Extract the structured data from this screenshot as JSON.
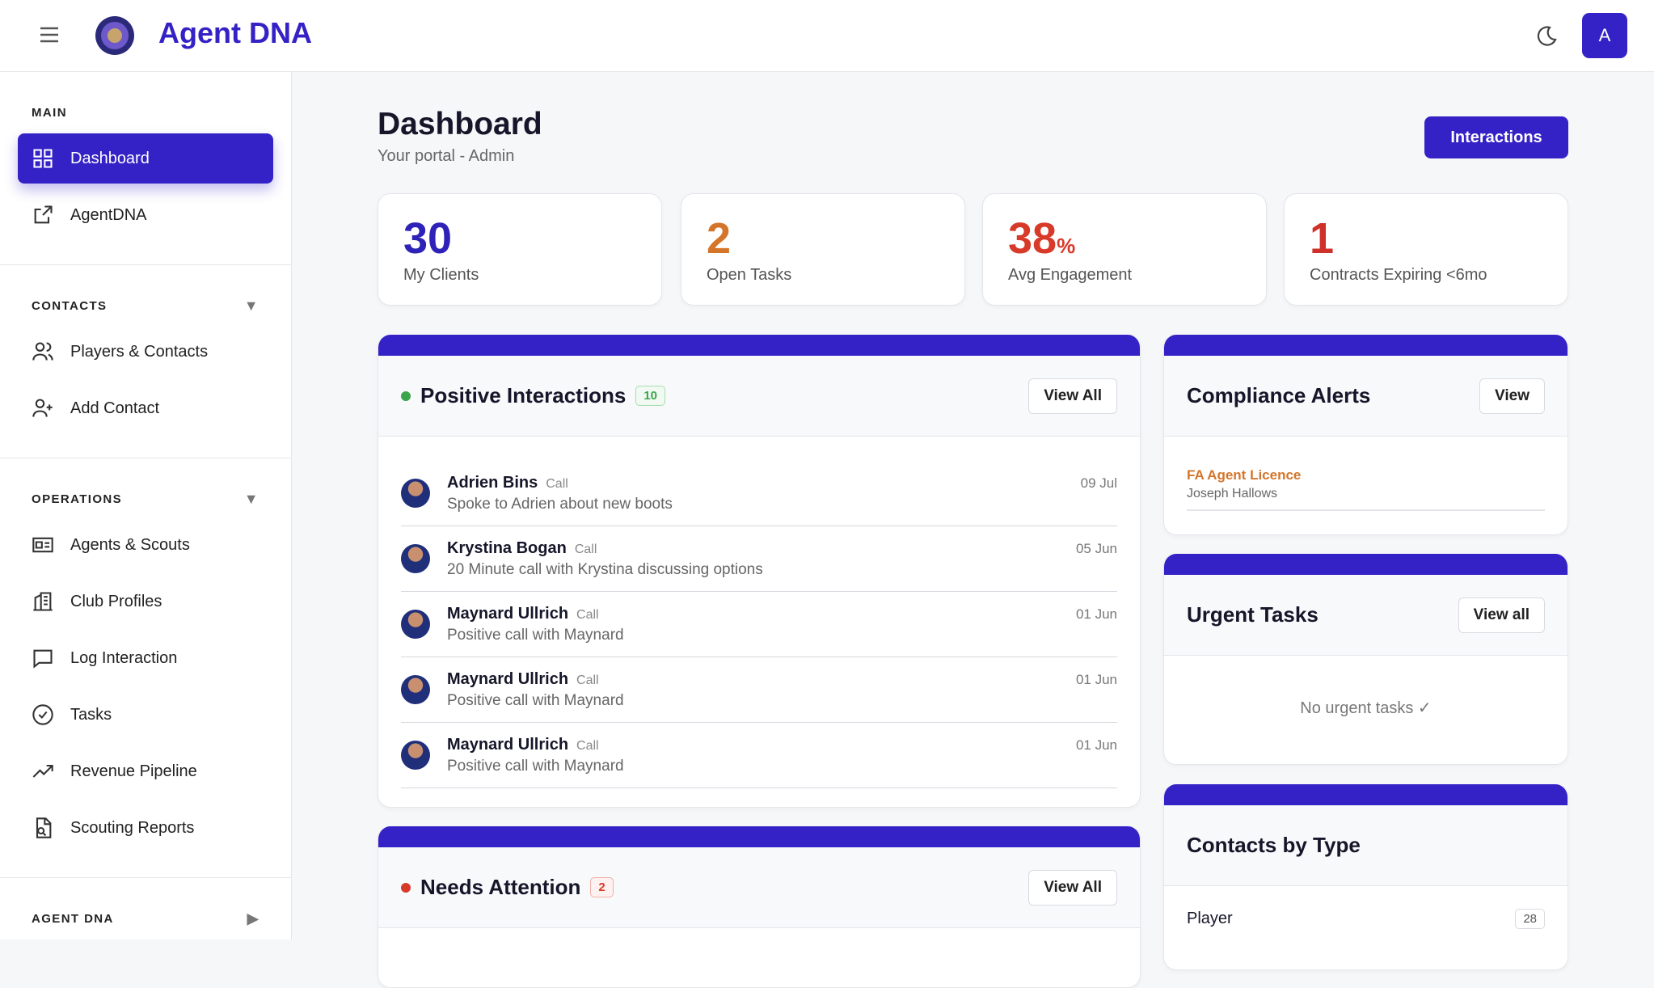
{
  "header": {
    "brand": "Agent DNA",
    "avatar": "A"
  },
  "sidebar": {
    "sections": [
      {
        "title": "MAIN",
        "items": [
          "Dashboard",
          "AgentDNA"
        ]
      },
      {
        "title": "CONTACTS",
        "items": [
          "Players & Contacts",
          "Add Contact"
        ]
      },
      {
        "title": "OPERATIONS",
        "items": [
          "Agents & Scouts",
          "Club Profiles",
          "Log Interaction",
          "Tasks",
          "Revenue Pipeline",
          "Scouting Reports"
        ]
      },
      {
        "title": "AGENT DNA",
        "items": []
      }
    ]
  },
  "main": {
    "title": "Dashboard",
    "subtitle": "Your portal - Admin",
    "button": "Interactions",
    "stats": [
      {
        "value": "30",
        "label": "My Clients"
      },
      {
        "value": "2",
        "label": "Open Tasks"
      },
      {
        "value": "38",
        "suffix": "%",
        "label": "Avg Engagement"
      },
      {
        "value": "1",
        "label": "Contracts Expiring <6mo"
      }
    ],
    "positive": {
      "title": "Positive Interactions",
      "count": "10",
      "button": "View All",
      "items": [
        {
          "name": "Adrien Bins",
          "type": "Call",
          "note": "Spoke to Adrien about new boots",
          "date": "09 Jul"
        },
        {
          "name": "Krystina Bogan",
          "type": "Call",
          "note": "20 Minute call with Krystina discussing options",
          "date": "05 Jun"
        },
        {
          "name": "Maynard Ullrich",
          "type": "Call",
          "note": "Positive call with Maynard",
          "date": "01 Jun"
        },
        {
          "name": "Maynard Ullrich",
          "type": "Call",
          "note": "Positive call with Maynard",
          "date": "01 Jun"
        },
        {
          "name": "Maynard Ullrich",
          "type": "Call",
          "note": "Positive call with Maynard",
          "date": "01 Jun"
        }
      ]
    },
    "attention": {
      "title": "Needs Attention",
      "count": "2",
      "button": "View All"
    },
    "compliance": {
      "title": "Compliance Alerts",
      "button": "View",
      "alert_title": "FA Agent Licence",
      "alert_person": "Joseph Hallows"
    },
    "urgent": {
      "title": "Urgent Tasks",
      "button": "View all",
      "empty": "No urgent tasks ✓"
    },
    "contacts": {
      "title": "Contacts by Type",
      "rows": [
        {
          "label": "Player",
          "count": "28"
        }
      ]
    }
  }
}
